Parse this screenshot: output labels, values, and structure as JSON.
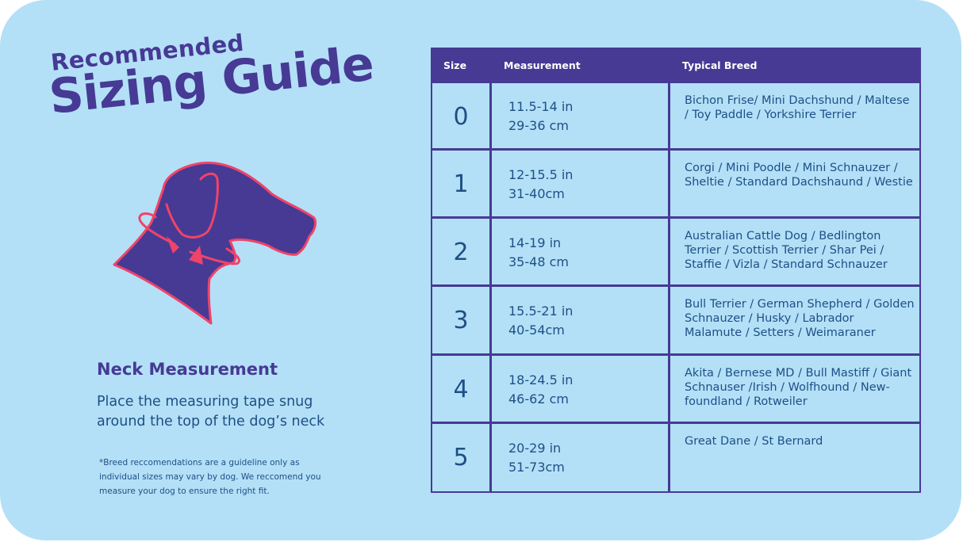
{
  "title": {
    "line1": "Recommended",
    "line2": "Sizing Guide"
  },
  "icons": {
    "dog_head": "dog-head-with-collar-measurement-arrow"
  },
  "neck": {
    "title": "Neck Measurement",
    "description": "Place the measuring tape snug around the top of the dog’s neck"
  },
  "footnote": "*Breed reccomendations are a guideline only as individual sizes may vary by dog. We reccomend you measure your dog to ensure the right fit.",
  "table": {
    "headers": {
      "size": "Size",
      "measurement": "Measurement",
      "breed": "Typical Breed"
    },
    "rows": [
      {
        "size": "0",
        "in": "11.5-14 in",
        "cm": "29-36 cm",
        "breed": "Bichon Frise/ Mini Dachshund / Maltese / Toy Paddle / Yorkshire Terrier"
      },
      {
        "size": "1",
        "in": "12-15.5 in",
        "cm": "31-40cm",
        "breed": "Corgi / Mini Poodle / Mini Schnauzer / Sheltie / Standard Dachshaund / Westie"
      },
      {
        "size": "2",
        "in": "14-19 in",
        "cm": "35-48 cm",
        "breed": "Australian Cattle Dog / Bedlington Terrier / Scottish Terrier / Shar Pei / Staffie / Vizla / Standard Schnauzer"
      },
      {
        "size": "3",
        "in": "15.5-21 in",
        "cm": "40-54cm",
        "breed": "Bull Terrier / German Shepherd / Golden Schnauzer / Husky / Labrador Malamute / Setters / Weimaraner"
      },
      {
        "size": "4",
        "in": "18-24.5 in",
        "cm": "46-62 cm",
        "breed": "Akita / Bernese MD / Bull Mastiff / Giant Schnauser /Irish / Wolfhound / New-foundland / Rotweiler"
      },
      {
        "size": "5",
        "in": "20-29 in",
        "cm": "51-73cm",
        "breed": "Great Dane / St Bernard"
      }
    ]
  },
  "colors": {
    "background": "#b3e0f7",
    "primary": "#463a94",
    "accent": "#f0436a",
    "text": "#1e4f86"
  }
}
